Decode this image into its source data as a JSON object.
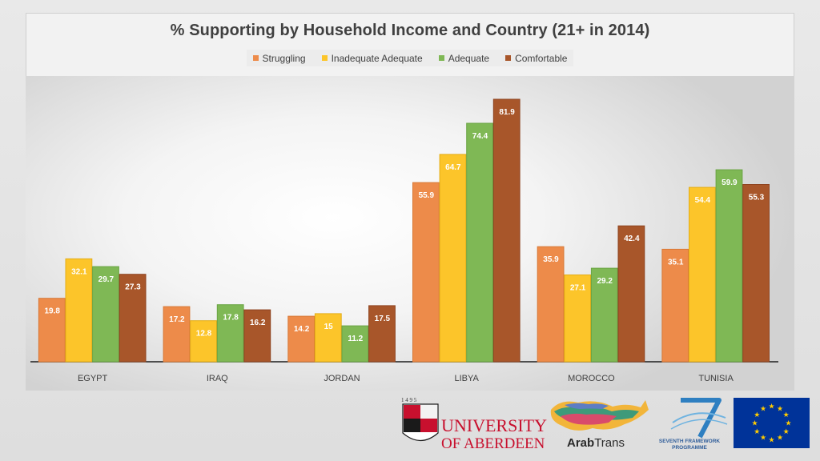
{
  "chart_data": {
    "type": "bar",
    "title": "% Supporting by Household Income and Country (21+ in 2014)",
    "categories": [
      "EGYPT",
      "IRAQ",
      "JORDAN",
      "LIBYA",
      "MOROCCO",
      "TUNISIA"
    ],
    "series": [
      {
        "name": "Struggling",
        "color": "#ED8B4A",
        "values": [
          19.8,
          17.2,
          14.2,
          55.9,
          35.9,
          35.1
        ]
      },
      {
        "name": "Inadequate Adequate",
        "color": "#FCC52A",
        "values": [
          32.1,
          12.8,
          15,
          64.7,
          27.1,
          54.4
        ]
      },
      {
        "name": "Adequate",
        "color": "#7FB855",
        "values": [
          29.7,
          17.8,
          11.2,
          74.4,
          29.2,
          59.9
        ]
      },
      {
        "name": "Comfortable",
        "color": "#A8562A",
        "values": [
          27.3,
          16.2,
          17.5,
          81.9,
          42.4,
          55.3
        ]
      }
    ],
    "ylim": [
      0,
      88
    ],
    "grid": false,
    "legend_position": "top",
    "xlabel": "",
    "ylabel": ""
  },
  "logos": {
    "aberdeen_year": "1 4 9 5",
    "aberdeen_line1": "UNIVERSITY",
    "aberdeen_line2": "OF ABERDEEN",
    "arabtrans_bold": "Arab",
    "arabtrans_rest": "Trans",
    "fp7_line1": "SEVENTH FRAMEWORK",
    "fp7_line2": "PROGRAMME"
  },
  "colors": {
    "aberdeen_red": "#C8102E",
    "fp7_blue": "#2E7FC1",
    "eu_blue": "#003399",
    "eu_star": "#FFCC00"
  }
}
